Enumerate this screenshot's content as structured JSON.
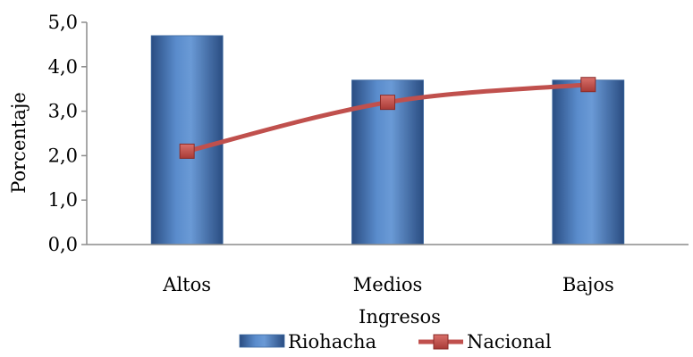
{
  "chart_data": {
    "type": "bar",
    "categories": [
      "Altos",
      "Medios",
      "Bajos"
    ],
    "series": [
      {
        "name": "Riohacha",
        "type": "bar",
        "values": [
          4.7,
          3.7,
          3.7
        ],
        "color": "#4f81bd"
      },
      {
        "name": "Nacional",
        "type": "line",
        "values": [
          2.1,
          3.2,
          3.6
        ],
        "color": "#c0504d"
      }
    ],
    "title": "",
    "xlabel": "Ingresos",
    "ylabel": "Porcentaje",
    "ylim": [
      0,
      5
    ],
    "yticks": [
      "0,0",
      "1,0",
      "2,0",
      "3,0",
      "4,0",
      "5,0"
    ],
    "grid": false,
    "legend": "bottom"
  }
}
